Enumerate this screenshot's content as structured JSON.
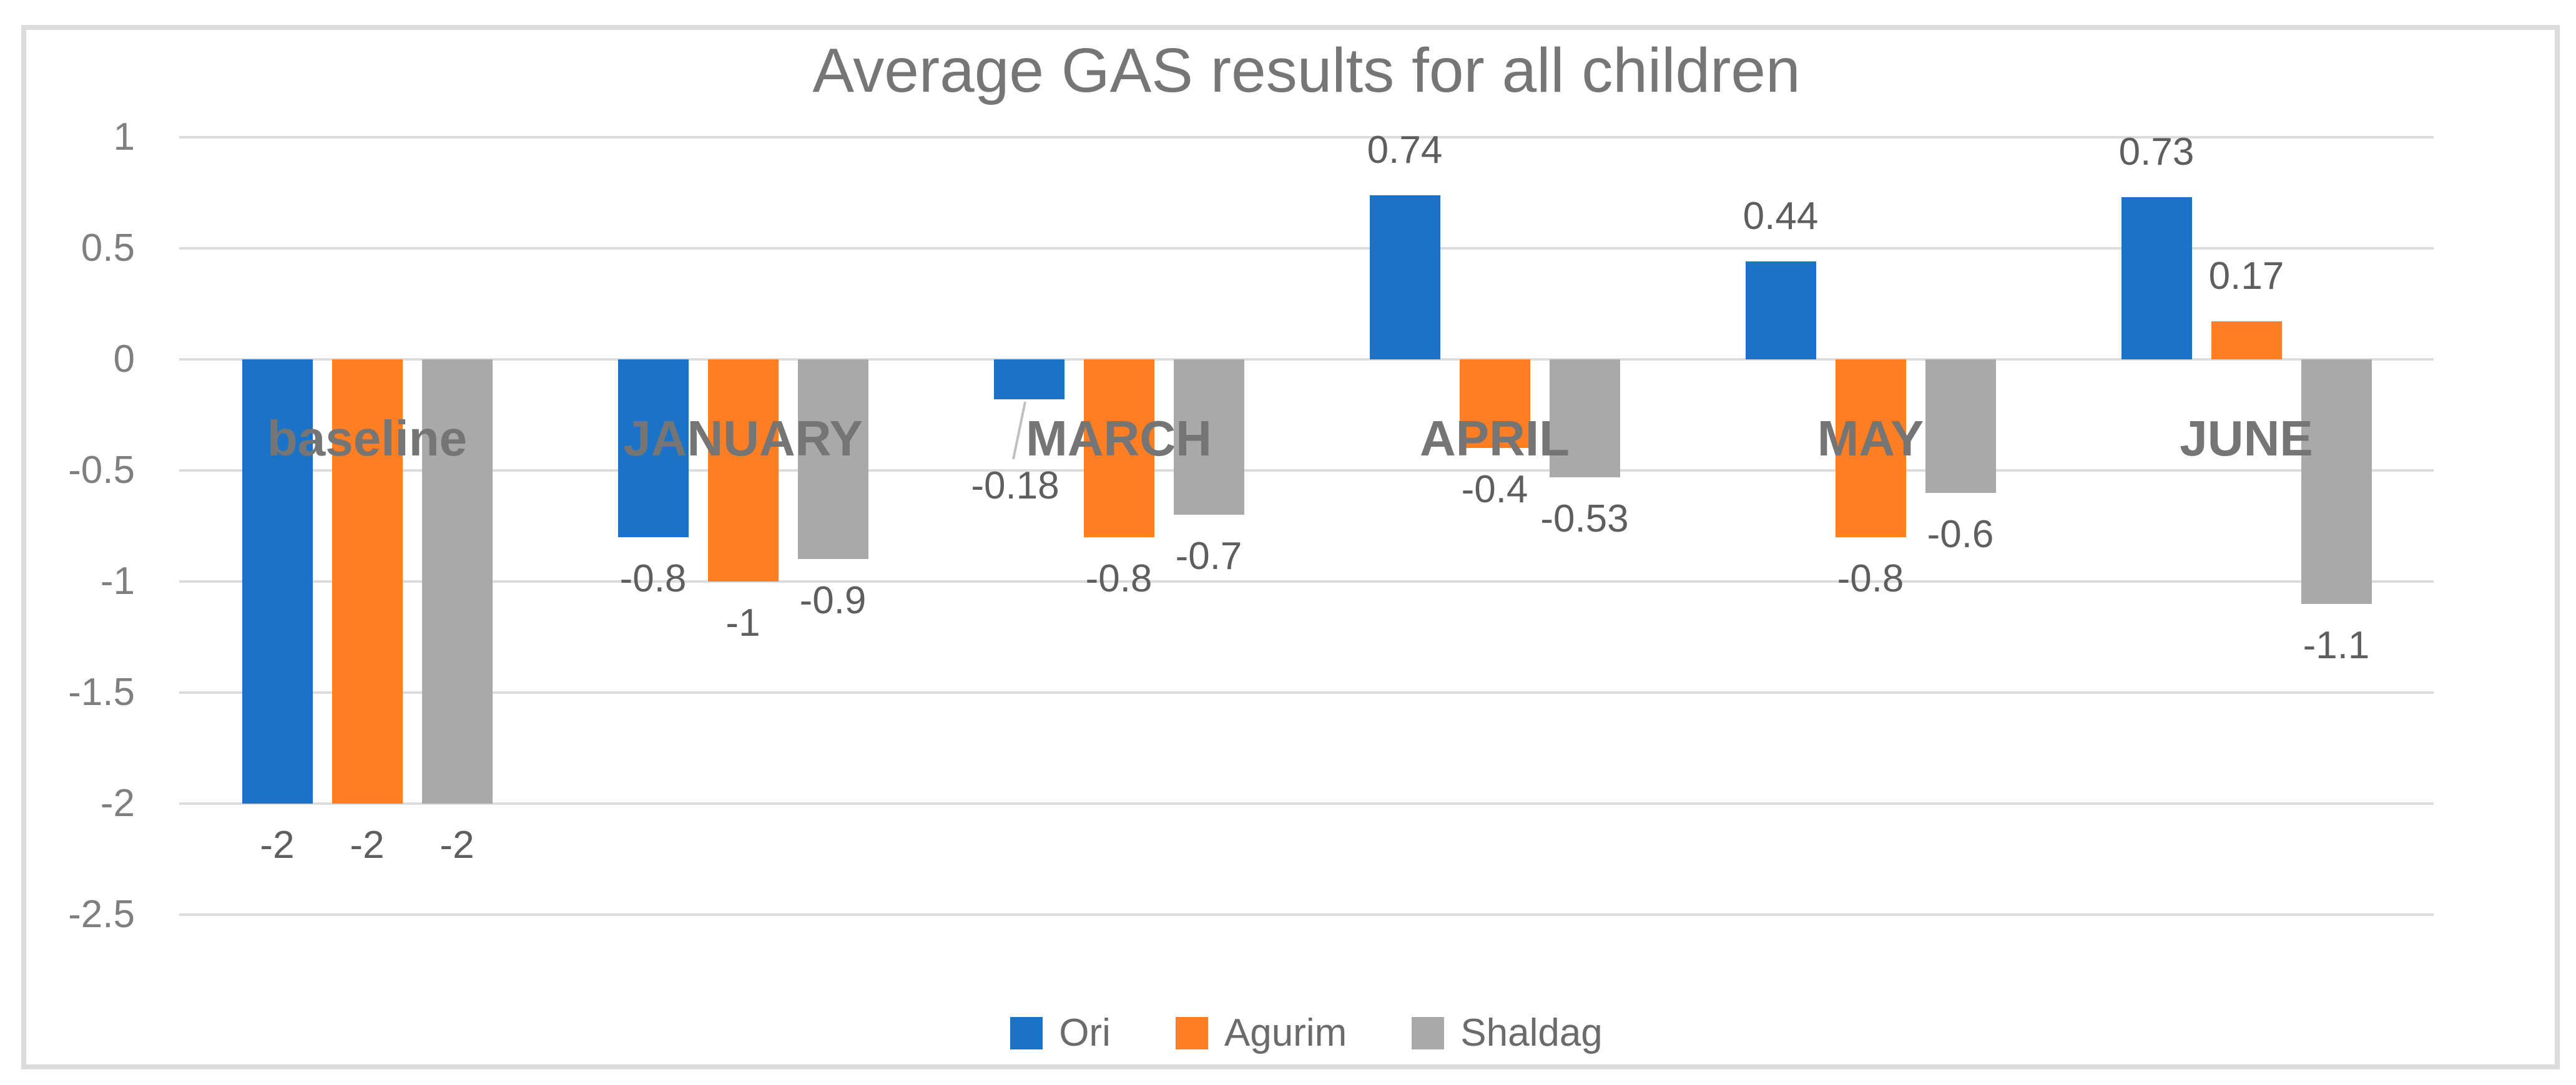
{
  "chart_data": {
    "type": "bar",
    "title": "Average GAS results for all children",
    "categories": [
      "baseline",
      "JANUARY",
      "MARCH",
      "APRIL",
      "MAY",
      "JUNE"
    ],
    "series": [
      {
        "name": "Ori",
        "color": "#1B73C7",
        "values": [
          -2,
          -0.8,
          -0.18,
          0.74,
          0.44,
          0.73
        ],
        "labels": [
          "-2",
          "-0.8",
          "-0.18",
          "0.74",
          "0.44",
          "0.73"
        ]
      },
      {
        "name": "Agurim",
        "color": "#FD7E23",
        "values": [
          -2,
          -1,
          -0.8,
          -0.4,
          -0.8,
          0.17
        ],
        "labels": [
          "-2",
          "-1",
          "-0.8",
          "-0.4",
          "-0.8",
          "0.17"
        ]
      },
      {
        "name": "Shaldag",
        "color": "#A9A9A9",
        "values": [
          -2,
          -0.9,
          -0.7,
          -0.53,
          -0.6,
          -1.1
        ],
        "labels": [
          "-2",
          "-0.9",
          "-0.7",
          "-0.53",
          "-0.6",
          "-1.1"
        ]
      }
    ],
    "y_ticks": [
      "1",
      "0.5",
      "0",
      "-0.5",
      "-1",
      "-1.5",
      "-2",
      "-2.5"
    ],
    "y_tick_values": [
      1,
      0.5,
      0,
      -0.5,
      -1,
      -1.5,
      -2,
      -2.5
    ],
    "ylim": [
      -2.5,
      1
    ],
    "grid": true,
    "legend_position": "bottom",
    "annotations": {
      "leader_line": {
        "series": "Ori",
        "category": "MARCH",
        "label": "-0.18"
      }
    }
  },
  "colors": {
    "frame": "#DBDBDB",
    "gridline": "#DCDCDC",
    "title": "#767676",
    "tick_label": "#7F7F7F",
    "data_label": "#5E5E5E",
    "category_label": "#757575",
    "legend_text": "#6B6B6B",
    "leader_line": "#C0C0C0",
    "background": "#FFFFFF"
  }
}
